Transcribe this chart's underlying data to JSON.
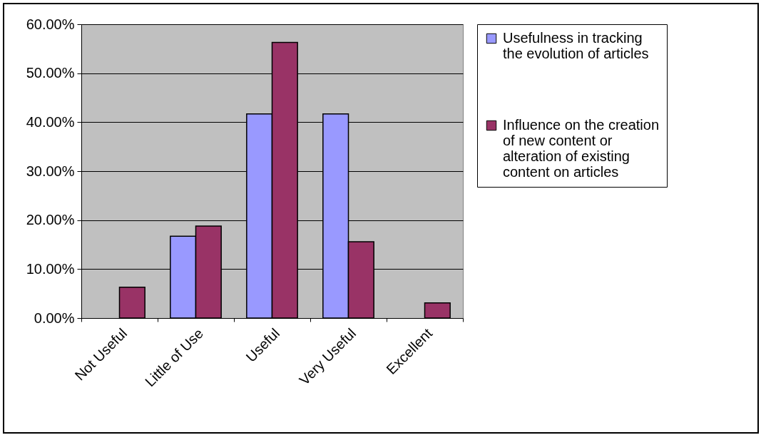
{
  "chart_data": {
    "type": "bar",
    "categories": [
      "Not Useful",
      "Little of Use",
      "Useful",
      "Very Useful",
      "Excellent"
    ],
    "series": [
      {
        "name": "Usefulness in tracking the evolution of articles",
        "color": "#9999ff",
        "values": [
          null,
          16.7,
          41.7,
          41.7,
          null
        ]
      },
      {
        "name": "Influence on the creation of new content or alteration of existing content on articles",
        "color": "#993366",
        "values": [
          6.3,
          18.8,
          56.3,
          15.6,
          3.1
        ]
      }
    ],
    "ylim": [
      0,
      60
    ],
    "yticks": [
      {
        "value": 0,
        "label": "0.00%"
      },
      {
        "value": 10,
        "label": "10.00%"
      },
      {
        "value": 20,
        "label": "20.00%"
      },
      {
        "value": 30,
        "label": "30.00%"
      },
      {
        "value": 40,
        "label": "40.00%"
      },
      {
        "value": 50,
        "label": "50.00%"
      },
      {
        "value": 60,
        "label": "60.00%"
      }
    ],
    "grid": "y",
    "legend": "right"
  }
}
